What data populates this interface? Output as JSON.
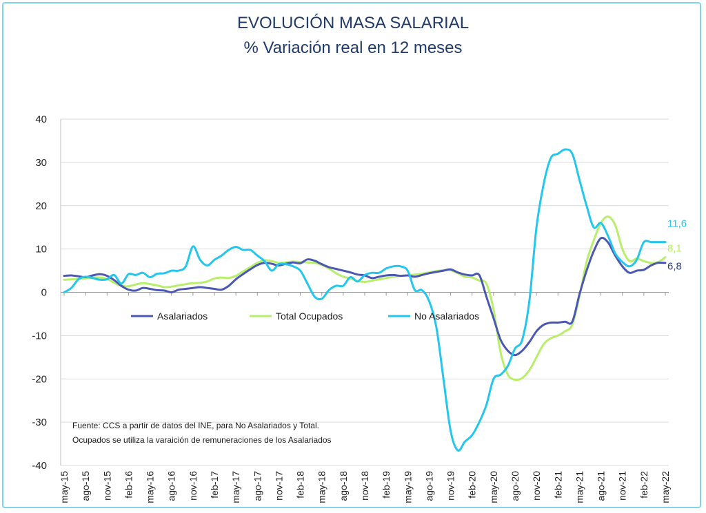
{
  "chart_data": {
    "type": "line",
    "title": "EVOLUCIÓN MASA SALARIAL",
    "subtitle": "% Variación real en 12 meses",
    "xlabel": "",
    "ylabel": "",
    "ylim": [
      -40,
      40
    ],
    "yticks": [
      "40",
      "30",
      "20",
      "10",
      "0",
      "-10",
      "-20",
      "-30",
      "-40"
    ],
    "grid": true,
    "legend_position": "inside-middle",
    "x_tick_labels": [
      "may-15",
      "ago-15",
      "nov-15",
      "feb-16",
      "may-16",
      "ago-16",
      "nov-16",
      "feb-17",
      "may-17",
      "ago-17",
      "nov-17",
      "feb-18",
      "may-18",
      "ago-18",
      "nov-18",
      "feb-19",
      "may-19",
      "ago-19",
      "nov-19",
      "feb-20",
      "may-20",
      "ago-20",
      "nov-20",
      "feb-21",
      "may-21",
      "ago-21",
      "nov-21",
      "feb-22",
      "may-22"
    ],
    "n_months": 85,
    "series": [
      {
        "name": "Asalariados",
        "color": "#4a58b3",
        "end_label": "6,8",
        "values": [
          3.8,
          3.9,
          3.7,
          3.5,
          3.9,
          4.2,
          3.8,
          2.8,
          1.5,
          0.6,
          0.4,
          1.0,
          0.8,
          0.5,
          0.4,
          0.0,
          0.6,
          0.8,
          1.0,
          1.2,
          1.0,
          0.8,
          0.6,
          1.5,
          3.0,
          4.2,
          5.3,
          6.3,
          6.8,
          6.6,
          6.2,
          6.6,
          6.9,
          6.7,
          7.6,
          7.3,
          6.5,
          5.8,
          5.4,
          5.0,
          4.6,
          4.1,
          3.9,
          3.3,
          3.6,
          3.9,
          4.0,
          3.8,
          3.9,
          3.6,
          4.0,
          4.4,
          4.7,
          5.0,
          5.3,
          4.6,
          4.1,
          3.9,
          4.0,
          -1.0,
          -6.0,
          -11.0,
          -13.5,
          -14.5,
          -13.5,
          -11.5,
          -9.0,
          -7.5,
          -7.0,
          -7.0,
          -6.8,
          -6.8,
          -0.5,
          5.0,
          9.5,
          12.5,
          11.5,
          8.5,
          6.0,
          4.5,
          5.0,
          5.2,
          6.2,
          6.8,
          6.8
        ]
      },
      {
        "name": "Total Ocupados",
        "color": "#b7ee6a",
        "end_label": "8,1",
        "values": [
          2.9,
          3.0,
          3.1,
          3.2,
          3.4,
          3.4,
          3.1,
          2.2,
          1.5,
          1.4,
          1.8,
          2.1,
          1.9,
          1.6,
          1.2,
          1.3,
          1.6,
          1.9,
          2.1,
          2.2,
          2.5,
          3.2,
          3.4,
          3.3,
          3.8,
          4.8,
          5.8,
          6.8,
          7.4,
          7.2,
          6.8,
          6.9,
          7.1,
          7.0,
          6.9,
          6.8,
          6.3,
          5.5,
          4.4,
          3.6,
          3.2,
          2.6,
          2.4,
          2.7,
          3.0,
          3.3,
          3.6,
          3.8,
          3.9,
          4.1,
          4.3,
          4.6,
          4.9,
          5.1,
          5.1,
          4.4,
          3.6,
          3.4,
          2.7,
          2.0,
          -4.0,
          -14.0,
          -19.0,
          -20.2,
          -19.8,
          -18.0,
          -15.0,
          -12.0,
          -10.6,
          -10.0,
          -9.0,
          -7.5,
          -1.0,
          7.0,
          12.0,
          16.0,
          17.5,
          15.5,
          10.0,
          7.2,
          7.8,
          7.2,
          6.8,
          7.0,
          8.1
        ]
      },
      {
        "name": "No Asalariados",
        "color": "#23c6ee",
        "end_label": "11,6",
        "values": [
          0.0,
          1.0,
          3.0,
          3.6,
          3.3,
          2.9,
          3.0,
          4.0,
          2.0,
          4.2,
          4.0,
          4.5,
          3.5,
          4.3,
          4.4,
          5.0,
          5.0,
          6.0,
          10.6,
          7.5,
          6.2,
          7.5,
          8.5,
          9.8,
          10.5,
          9.8,
          9.8,
          8.5,
          7.2,
          5.0,
          6.5,
          6.5,
          6.0,
          5.0,
          2.0,
          -1.0,
          -1.5,
          0.5,
          1.5,
          1.5,
          3.5,
          2.5,
          4.0,
          4.5,
          4.5,
          5.5,
          6.0,
          6.0,
          5.0,
          0.5,
          0.5,
          -2.0,
          -8.0,
          -20.0,
          -32.0,
          -36.5,
          -34.5,
          -33.0,
          -30.0,
          -26.0,
          -20.0,
          -19.0,
          -17.0,
          -13.0,
          -11.0,
          -2.0,
          15.0,
          25.0,
          31.0,
          32.0,
          33.0,
          32.0,
          26.0,
          20.0,
          15.0,
          16.0,
          13.0,
          9.0,
          7.0,
          6.0,
          7.5,
          11.6,
          11.6,
          11.6,
          11.6
        ]
      }
    ]
  },
  "footnote": {
    "line1": "Fuente: CCS a partir de datos del INE, para No Asalariados y Total.",
    "line2": "Ocupados se utiliza la varaición de remuneraciones de los Asalariados"
  }
}
